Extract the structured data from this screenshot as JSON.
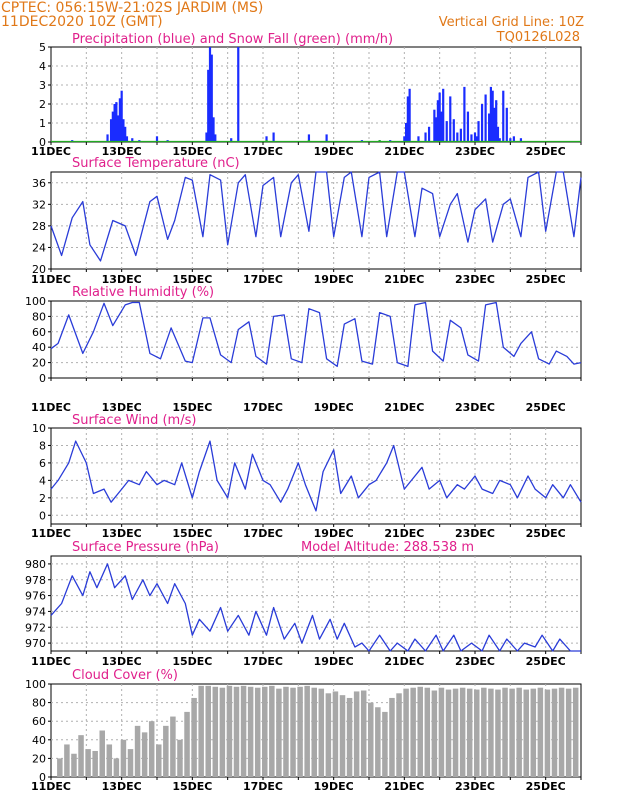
{
  "header": {
    "line1": "CPTEC:   056:15W-21:02S   JARDIM (MS)",
    "line2": "11DEC2020 10Z (GMT)",
    "grid_note": "Vertical Grid Line: 10Z",
    "model_code": "TQ0126L028"
  },
  "colors": {
    "header": "#e07818",
    "panel_title": "#e0208c",
    "precip": "#1a2cff",
    "snow": "#22aa22",
    "line": "#2a3cd8",
    "cloud": "#a8a8a8",
    "grid": "#b0b0b0"
  },
  "x_tick_labels": [
    "11DEC",
    "13DEC",
    "15DEC",
    "17DEC",
    "19DEC",
    "21DEC",
    "23DEC",
    "25DEC"
  ],
  "chart_data": [
    {
      "id": "precip",
      "type": "bar",
      "title": "Precipitation (blue) and Snow Fall (green) (mm/h)",
      "ylim": [
        0,
        5
      ],
      "yticks": [
        0,
        1,
        2,
        3,
        4,
        5
      ],
      "xlim": [
        0,
        15
      ],
      "x_unit": "days after 11DEC2020 10Z",
      "grid": true,
      "series": [
        {
          "name": "Precipitation",
          "color": "#1a2cff",
          "x": [
            0.6,
            1.6,
            1.7,
            1.75,
            1.8,
            1.85,
            1.9,
            1.95,
            2.0,
            2.05,
            2.1,
            2.15,
            2.3,
            2.5,
            3.0,
            3.3,
            4.4,
            4.45,
            4.5,
            4.55,
            4.6,
            4.65,
            5.1,
            5.3,
            6.1,
            6.3,
            7.3,
            7.8,
            8.8,
            9.3,
            9.6,
            10.0,
            10.05,
            10.1,
            10.15,
            10.4,
            10.6,
            10.7,
            10.85,
            10.9,
            10.95,
            11.0,
            11.05,
            11.1,
            11.2,
            11.3,
            11.4,
            11.5,
            11.6,
            11.7,
            11.8,
            11.9,
            12.0,
            12.05,
            12.1,
            12.2,
            12.3,
            12.4,
            12.45,
            12.5,
            12.55,
            12.6,
            12.65,
            12.7,
            12.8,
            12.9,
            13.0,
            13.1,
            13.3
          ],
          "values": [
            0.1,
            0.4,
            1.2,
            1.6,
            2.0,
            2.1,
            1.4,
            2.3,
            2.7,
            1.2,
            0.8,
            0.3,
            0.2,
            0.1,
            0.3,
            0.1,
            0.5,
            3.8,
            5.0,
            4.6,
            1.3,
            0.4,
            0.2,
            5.0,
            0.3,
            0.5,
            0.4,
            0.4,
            0.1,
            0.1,
            0.1,
            0.3,
            1.0,
            2.4,
            2.8,
            0.3,
            0.5,
            0.8,
            1.7,
            1.3,
            2.2,
            2.6,
            1.6,
            2.8,
            1.1,
            2.4,
            1.2,
            0.5,
            0.7,
            2.9,
            1.6,
            0.4,
            0.5,
            0.3,
            1.1,
            2.0,
            2.5,
            1.5,
            2.9,
            2.7,
            1.8,
            2.2,
            0.8,
            0.2,
            2.7,
            1.8,
            0.2,
            0.3,
            0.2
          ]
        },
        {
          "name": "Snow Fall",
          "color": "#22aa22",
          "x": [
            6.1,
            7.3,
            9.3
          ],
          "values": [
            0.1,
            0.1,
            0.1
          ]
        }
      ]
    },
    {
      "id": "temperature",
      "type": "line",
      "title": "Surface Temperature (nC)",
      "ylim": [
        20,
        38
      ],
      "yticks": [
        20,
        24,
        28,
        32,
        36
      ],
      "xlim": [
        0,
        15
      ],
      "grid": true,
      "series": [
        {
          "name": "Temperature",
          "x": [
            0,
            0.3,
            0.6,
            0.9,
            1.1,
            1.4,
            1.75,
            2.1,
            2.4,
            2.8,
            3.0,
            3.3,
            3.5,
            3.8,
            4.0,
            4.3,
            4.5,
            4.8,
            5.0,
            5.3,
            5.5,
            5.8,
            6.0,
            6.3,
            6.5,
            6.8,
            7.0,
            7.3,
            7.5,
            7.8,
            8.0,
            8.3,
            8.5,
            8.8,
            9.0,
            9.3,
            9.5,
            9.8,
            10.0,
            10.3,
            10.5,
            10.8,
            11.0,
            11.3,
            11.5,
            11.8,
            12.0,
            12.3,
            12.5,
            12.8,
            13.0,
            13.3,
            13.5,
            13.8,
            14.0,
            14.3,
            14.5,
            14.8,
            15.0
          ],
          "values": [
            28,
            22.5,
            29.5,
            32.5,
            24.5,
            21.5,
            29,
            28,
            22.5,
            32.5,
            33.5,
            25.5,
            29,
            37,
            36.5,
            26,
            37.5,
            36.5,
            24.5,
            36,
            37.5,
            26,
            35.5,
            37,
            26,
            36,
            37.5,
            27,
            38,
            38,
            26,
            37,
            38,
            26,
            37,
            38,
            26,
            38,
            38,
            26,
            35,
            34,
            26,
            32,
            34,
            25,
            31,
            33,
            25,
            32,
            33,
            26,
            37,
            38,
            27,
            38,
            38,
            26,
            37
          ]
        }
      ]
    },
    {
      "id": "humidity",
      "type": "line",
      "title": "Relative Humidity (%)",
      "ylim": [
        0,
        100
      ],
      "yticks": [
        0,
        20,
        40,
        60,
        80,
        100
      ],
      "xlim": [
        0,
        15
      ],
      "grid": true,
      "series": [
        {
          "name": "Relative Humidity",
          "x": [
            0,
            0.2,
            0.5,
            0.9,
            1.2,
            1.5,
            1.75,
            2.1,
            2.3,
            2.5,
            2.8,
            3.1,
            3.4,
            3.8,
            4.0,
            4.3,
            4.5,
            4.8,
            5.1,
            5.3,
            5.6,
            5.8,
            6.1,
            6.3,
            6.6,
            6.8,
            7.1,
            7.3,
            7.6,
            7.8,
            8.1,
            8.3,
            8.6,
            8.8,
            9.1,
            9.3,
            9.6,
            9.8,
            10.1,
            10.3,
            10.6,
            10.8,
            11.1,
            11.3,
            11.6,
            11.8,
            12.1,
            12.3,
            12.6,
            12.8,
            13.1,
            13.3,
            13.6,
            13.8,
            14.1,
            14.3,
            14.6,
            14.8,
            15.0
          ],
          "values": [
            38,
            45,
            82,
            32,
            60,
            97,
            68,
            95,
            98,
            98,
            32,
            25,
            65,
            22,
            20,
            78,
            78,
            30,
            20,
            63,
            73,
            28,
            18,
            80,
            82,
            25,
            20,
            90,
            85,
            25,
            15,
            70,
            77,
            22,
            18,
            85,
            80,
            20,
            15,
            95,
            98,
            35,
            22,
            75,
            65,
            30,
            22,
            95,
            98,
            40,
            28,
            45,
            60,
            25,
            18,
            35,
            28,
            18,
            20
          ]
        }
      ]
    },
    {
      "id": "wind",
      "type": "line",
      "title": "Surface Wind (m/s)",
      "ylim": [
        -1,
        10
      ],
      "yticks": [
        0,
        2,
        4,
        6,
        8,
        10
      ],
      "xlim": [
        0,
        15
      ],
      "grid": true,
      "series": [
        {
          "name": "Wind Speed",
          "x": [
            0,
            0.2,
            0.5,
            0.7,
            1.0,
            1.2,
            1.5,
            1.7,
            2.0,
            2.2,
            2.5,
            2.7,
            3.0,
            3.2,
            3.5,
            3.7,
            4.0,
            4.2,
            4.5,
            4.7,
            5.0,
            5.2,
            5.5,
            5.7,
            6.0,
            6.2,
            6.5,
            6.7,
            7.0,
            7.2,
            7.5,
            7.7,
            8.0,
            8.2,
            8.5,
            8.7,
            9.0,
            9.2,
            9.5,
            9.7,
            10.0,
            10.2,
            10.5,
            10.7,
            11.0,
            11.2,
            11.5,
            11.7,
            12.0,
            12.2,
            12.5,
            12.7,
            13.0,
            13.2,
            13.5,
            13.7,
            14.0,
            14.2,
            14.5,
            14.7,
            15.0
          ],
          "values": [
            3,
            4,
            6,
            8.5,
            6,
            2.5,
            3,
            1.5,
            3,
            4,
            3.5,
            5,
            3.5,
            4,
            3.5,
            6,
            2,
            5,
            8.5,
            4,
            2,
            6,
            3,
            7,
            4,
            3.5,
            1.5,
            3,
            6,
            3.5,
            0.5,
            5,
            7.5,
            2.5,
            4.5,
            2,
            3.5,
            4,
            6,
            8,
            3,
            4,
            5.5,
            3,
            4,
            2,
            3.5,
            3,
            4.5,
            3,
            2.5,
            4,
            3.5,
            2,
            4.5,
            3,
            2,
            3.5,
            2,
            3.5,
            1.5
          ]
        }
      ]
    },
    {
      "id": "pressure",
      "type": "line",
      "title": "Surface Pressure (hPa)",
      "annotation": "Model Altitude: 288.538  m",
      "ylim": [
        969,
        981
      ],
      "yticks": [
        970,
        972,
        974,
        976,
        978,
        980
      ],
      "xlim": [
        0,
        15
      ],
      "grid": true,
      "series": [
        {
          "name": "Surface Pressure",
          "x": [
            0,
            0.3,
            0.6,
            0.9,
            1.1,
            1.3,
            1.6,
            1.8,
            2.1,
            2.3,
            2.6,
            2.8,
            3.0,
            3.3,
            3.5,
            3.8,
            4.0,
            4.2,
            4.5,
            4.8,
            5.0,
            5.3,
            5.6,
            5.8,
            6.1,
            6.3,
            6.6,
            6.9,
            7.1,
            7.4,
            7.6,
            7.9,
            8.1,
            8.3,
            8.6,
            8.8,
            9.0,
            9.3,
            9.6,
            9.8,
            10.1,
            10.3,
            10.6,
            10.9,
            11.1,
            11.4,
            11.6,
            11.9,
            12.2,
            12.4,
            12.7,
            12.9,
            13.2,
            13.4,
            13.7,
            13.9,
            14.2,
            14.4,
            14.7,
            15.0
          ],
          "values": [
            973.5,
            975,
            978.5,
            976,
            979,
            977,
            980,
            977,
            978.5,
            975.5,
            978,
            976,
            977.5,
            975,
            977.5,
            975,
            971,
            973,
            971.5,
            974.5,
            971.5,
            973.5,
            971,
            974,
            971,
            974.5,
            970.5,
            972.5,
            970,
            973.5,
            970.5,
            973,
            970.5,
            972.5,
            969.5,
            970,
            969,
            971,
            969,
            970,
            968.5,
            970.5,
            968.5,
            971,
            968.5,
            971,
            968.5,
            970,
            968.5,
            971,
            968.5,
            970.5,
            968.5,
            970,
            969.5,
            971,
            968.5,
            970.5,
            968.5,
            969
          ]
        }
      ]
    },
    {
      "id": "cloud",
      "type": "bar",
      "title": "Cloud Cover (%)",
      "ylim": [
        0,
        100
      ],
      "yticks": [
        0,
        20,
        40,
        60,
        80,
        100
      ],
      "xlim": [
        0,
        15
      ],
      "grid": true,
      "series": [
        {
          "name": "Cloud Cover",
          "color": "#a8a8a8",
          "x": [
            0.25,
            0.45,
            0.65,
            0.85,
            1.05,
            1.25,
            1.45,
            1.65,
            1.85,
            2.05,
            2.25,
            2.45,
            2.65,
            2.85,
            3.05,
            3.25,
            3.45,
            3.65,
            3.85,
            4.05,
            4.25,
            4.45,
            4.65,
            4.85,
            5.05,
            5.25,
            5.45,
            5.65,
            5.85,
            6.05,
            6.25,
            6.45,
            6.65,
            6.85,
            7.05,
            7.25,
            7.45,
            7.65,
            7.85,
            8.05,
            8.25,
            8.45,
            8.65,
            8.85,
            9.05,
            9.25,
            9.45,
            9.65,
            9.85,
            10.05,
            10.25,
            10.45,
            10.65,
            10.85,
            11.05,
            11.25,
            11.45,
            11.65,
            11.85,
            12.05,
            12.25,
            12.45,
            12.65,
            12.85,
            13.05,
            13.25,
            13.45,
            13.65,
            13.85,
            14.05,
            14.25,
            14.45,
            14.65,
            14.85
          ],
          "values": [
            20,
            35,
            25,
            45,
            30,
            28,
            50,
            35,
            20,
            40,
            30,
            55,
            48,
            60,
            35,
            55,
            65,
            40,
            70,
            85,
            98,
            98,
            97,
            96,
            98,
            97,
            98,
            97,
            96,
            97,
            98,
            95,
            97,
            96,
            97,
            98,
            96,
            95,
            90,
            92,
            88,
            85,
            92,
            93,
            80,
            75,
            70,
            85,
            90,
            95,
            96,
            97,
            96,
            93,
            96,
            94,
            95,
            96,
            95,
            94,
            96,
            95,
            94,
            96,
            95,
            96,
            94,
            95,
            96,
            94,
            95,
            96,
            95,
            96
          ]
        }
      ]
    }
  ]
}
